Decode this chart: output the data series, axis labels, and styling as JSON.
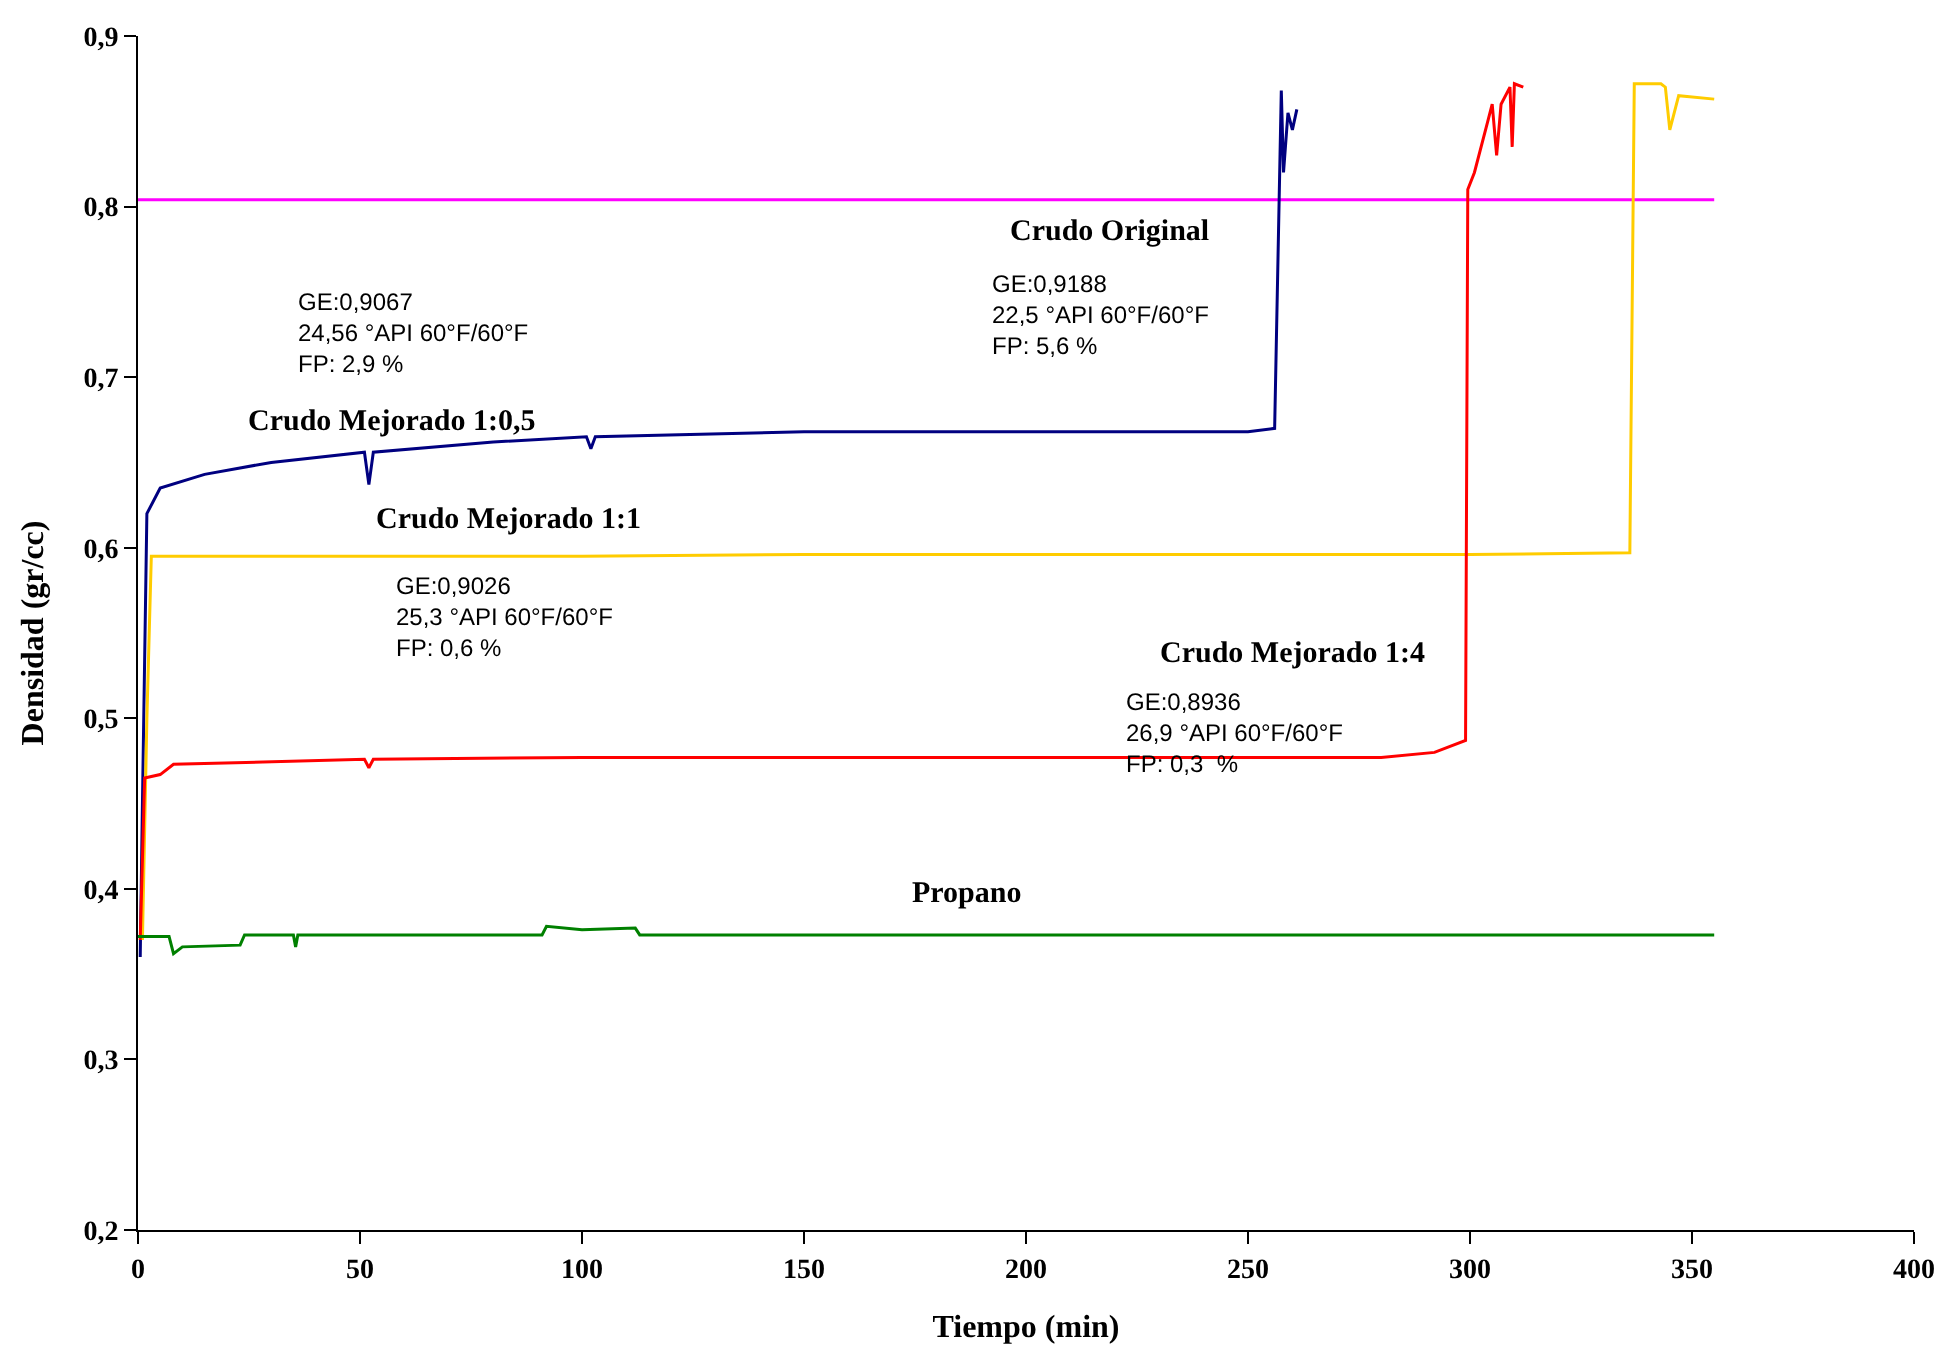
{
  "chart_data": {
    "type": "line",
    "xlabel": "Tiempo (min)",
    "ylabel": "Densidad (gr/cc)",
    "xlim": [
      0,
      400
    ],
    "xticks": [
      0,
      50,
      100,
      150,
      200,
      250,
      300,
      350,
      400
    ],
    "ylim": [
      0.2,
      0.9
    ],
    "yticks": [
      {
        "value": 0.2,
        "label": "0,2"
      },
      {
        "value": 0.3,
        "label": "0,3"
      },
      {
        "value": 0.4,
        "label": "0,4"
      },
      {
        "value": 0.5,
        "label": "0,5"
      },
      {
        "value": 0.6,
        "label": "0,6"
      },
      {
        "value": 0.7,
        "label": "0,7"
      },
      {
        "value": 0.8,
        "label": "0,8"
      },
      {
        "value": 0.9,
        "label": "0,9"
      }
    ],
    "legend": false,
    "marker": "none",
    "line_style": "solid",
    "series": [
      {
        "name": "Crudo Original",
        "color": "#ff00ff",
        "x": [
          0,
          50,
          100,
          150,
          200,
          250,
          300,
          355
        ],
        "values": [
          0.804,
          0.804,
          0.804,
          0.804,
          0.804,
          0.804,
          0.804,
          0.804
        ]
      },
      {
        "name": "Crudo Mejorado 1:0,5",
        "color": "#000080",
        "x": [
          0.5,
          1,
          2,
          5,
          15,
          30,
          51,
          52,
          53,
          80,
          101,
          102,
          103,
          150,
          200,
          250,
          256,
          257.5,
          258,
          259,
          260,
          261
        ],
        "values": [
          0.36,
          0.45,
          0.62,
          0.635,
          0.643,
          0.65,
          0.656,
          0.637,
          0.656,
          0.662,
          0.665,
          0.658,
          0.665,
          0.668,
          0.668,
          0.668,
          0.67,
          0.868,
          0.82,
          0.855,
          0.845,
          0.857
        ]
      },
      {
        "name": "Crudo Mejorado 1:1",
        "color": "#ffcc00",
        "x": [
          1,
          2,
          3,
          50,
          100,
          150,
          200,
          250,
          300,
          336,
          337,
          343,
          344,
          345,
          347,
          355
        ],
        "values": [
          0.37,
          0.5,
          0.595,
          0.595,
          0.595,
          0.596,
          0.596,
          0.596,
          0.596,
          0.597,
          0.872,
          0.872,
          0.87,
          0.845,
          0.865,
          0.863
        ]
      },
      {
        "name": "Crudo Mejorado 1:4",
        "color": "#ff0000",
        "x": [
          0.5,
          1.5,
          5,
          8,
          51,
          52,
          53,
          100,
          200,
          280,
          292,
          299,
          299.5,
          301,
          304,
          305,
          306,
          307,
          309,
          309.5,
          310,
          312
        ],
        "values": [
          0.37,
          0.465,
          0.467,
          0.473,
          0.476,
          0.471,
          0.476,
          0.477,
          0.477,
          0.477,
          0.48,
          0.487,
          0.81,
          0.82,
          0.85,
          0.86,
          0.83,
          0.86,
          0.87,
          0.835,
          0.872,
          0.87
        ]
      },
      {
        "name": "Propano",
        "color": "#008000",
        "x": [
          0,
          7,
          8,
          10,
          23,
          24,
          35,
          35.5,
          36,
          91,
          92,
          100,
          112,
          113,
          200,
          300,
          355
        ],
        "values": [
          0.372,
          0.372,
          0.362,
          0.366,
          0.367,
          0.373,
          0.373,
          0.366,
          0.373,
          0.373,
          0.378,
          0.376,
          0.377,
          0.373,
          0.373,
          0.373,
          0.373
        ]
      }
    ],
    "annotations": [
      "GE:0,9067\n24,56 °API 60°F/60°F\nFP: 2,9 %",
      "GE:0,9188\n22,5 °API 60°F/60°F\nFP: 5,6 %",
      "GE:0,9026\n25,3 °API 60°F/60°F\nFP: 0,6 %",
      "GE:0,8936\n26,9 °API 60°F/60°F\nFP: 0,3  %"
    ]
  }
}
